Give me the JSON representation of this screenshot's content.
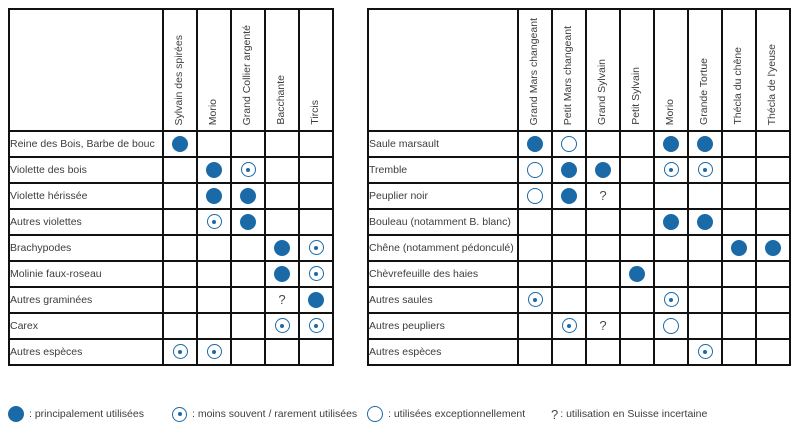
{
  "colors": {
    "accent_blue": "#1B6AA8",
    "border": "#111111",
    "text": "#3d3d3d",
    "background": "#ffffff"
  },
  "chart_data": [
    {
      "type": "table",
      "name": "left-host-plant-matrix",
      "columns": [
        "Sylvain des spirées",
        "Morio",
        "Grand Collier argenté",
        "Bacchante",
        "Tircis"
      ],
      "rows": [
        {
          "label": "Reine des Bois, Barbe de bouc",
          "cells": [
            "F",
            "",
            "",
            "",
            ""
          ]
        },
        {
          "label": "Violette des bois",
          "cells": [
            "",
            "F",
            "D",
            "",
            ""
          ]
        },
        {
          "label": "Violette hérissée",
          "cells": [
            "",
            "F",
            "F",
            "",
            ""
          ]
        },
        {
          "label": "Autres violettes",
          "cells": [
            "",
            "D",
            "F",
            "",
            ""
          ]
        },
        {
          "label": "Brachypodes",
          "cells": [
            "",
            "",
            "",
            "F",
            "D"
          ]
        },
        {
          "label": "Molinie faux-roseau",
          "cells": [
            "",
            "",
            "",
            "F",
            "D"
          ]
        },
        {
          "label": "Autres graminées",
          "cells": [
            "",
            "",
            "",
            "Q",
            "F"
          ]
        },
        {
          "label": "Carex",
          "cells": [
            "",
            "",
            "",
            "D",
            "D"
          ]
        },
        {
          "label": "Autres espèces",
          "cells": [
            "D",
            "D",
            "",
            "",
            ""
          ]
        }
      ]
    },
    {
      "type": "table",
      "name": "right-host-plant-matrix",
      "columns": [
        "Grand Mars changeant",
        "Petit Mars changeant",
        "Grand Sylvain",
        "Petit Sylvain",
        "Morio",
        "Grande Tortue",
        "Thécla du chêne",
        "Thécla de l'yeuse"
      ],
      "rows": [
        {
          "label": "Saule marsault",
          "cells": [
            "F",
            "E",
            "",
            "",
            "F",
            "F",
            "",
            ""
          ]
        },
        {
          "label": "Tremble",
          "cells": [
            "E",
            "F",
            "F",
            "",
            "D",
            "D",
            "",
            ""
          ]
        },
        {
          "label": "Peuplier noir",
          "cells": [
            "E",
            "F",
            "Q",
            "",
            "",
            "",
            "",
            ""
          ]
        },
        {
          "label": "Bouleau (notamment B. blanc)",
          "cells": [
            "",
            "",
            "",
            "",
            "F",
            "F",
            "",
            ""
          ]
        },
        {
          "label": "Chêne (notamment pédonculé)",
          "cells": [
            "",
            "",
            "",
            "",
            "",
            "",
            "F",
            "F"
          ]
        },
        {
          "label": "Chèvrefeuille des haies",
          "cells": [
            "",
            "",
            "",
            "F",
            "",
            "",
            "",
            ""
          ]
        },
        {
          "label": "Autres saules",
          "cells": [
            "D",
            "",
            "",
            "",
            "D",
            "",
            "",
            ""
          ]
        },
        {
          "label": "Autres peupliers",
          "cells": [
            "",
            "D",
            "Q",
            "",
            "E",
            "",
            "",
            ""
          ]
        },
        {
          "label": "Autres espèces",
          "cells": [
            "",
            "",
            "",
            "",
            "",
            "D",
            "",
            ""
          ]
        }
      ]
    }
  ],
  "legend": {
    "items": [
      {
        "symbol": "filled-circle",
        "label": ": principalement utilisées"
      },
      {
        "symbol": "dotted-circle",
        "label": ": moins souvent / rarement utilisées"
      },
      {
        "symbol": "empty-circle",
        "label": ": utilisées exceptionnellement"
      },
      {
        "symbol": "question-mark",
        "glyph": "?",
        "label": ": utilisation en Suisse incertaine"
      }
    ]
  },
  "symbols": {
    "question_glyph": "?",
    "meanings": {
      "F": "principalement utilisées",
      "D": "moins souvent / rarement utilisées",
      "E": "utilisées exceptionnellement",
      "Q": "utilisation en Suisse incertaine"
    }
  }
}
